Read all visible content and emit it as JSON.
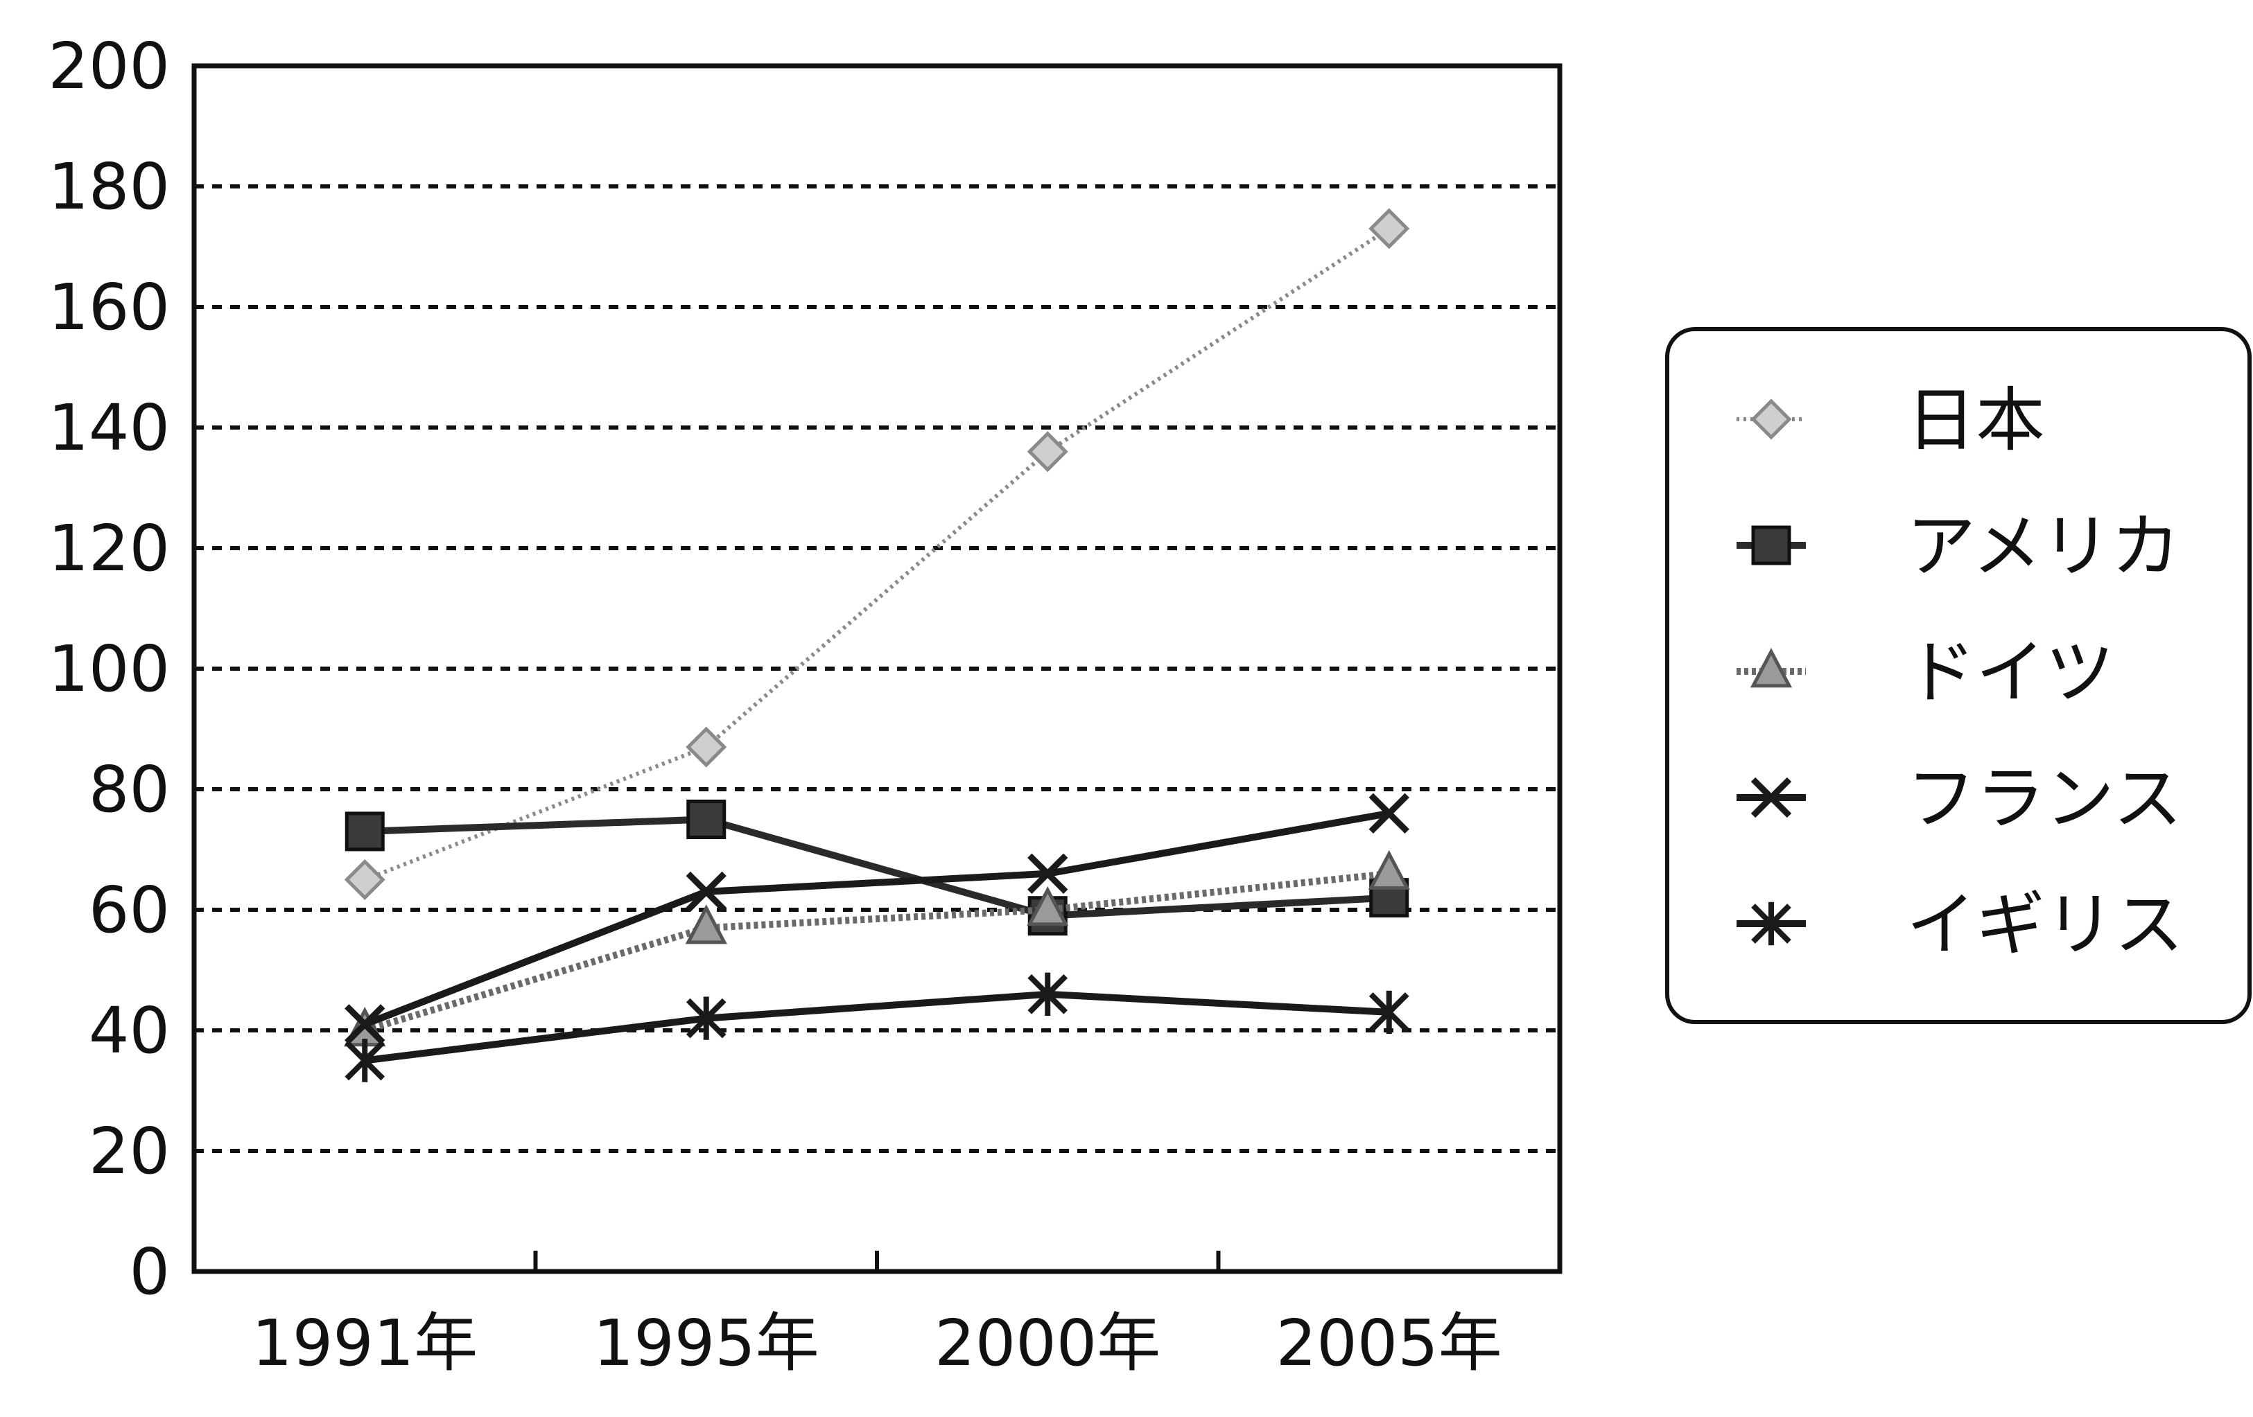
{
  "chart_data": {
    "type": "line",
    "title": "",
    "xlabel": "",
    "ylabel": "",
    "categories": [
      "1991年",
      "1995年",
      "2000年",
      "2005年"
    ],
    "ylim": [
      0,
      200
    ],
    "yticks": [
      0,
      20,
      40,
      60,
      80,
      100,
      120,
      140,
      160,
      180,
      200
    ],
    "grid": "horizontal dashed",
    "legend_position": "right",
    "series": [
      {
        "name": "日本",
        "values": [
          65,
          87,
          136,
          173
        ],
        "color": "#9a9a9a",
        "marker": "diamond-hatched",
        "line": "dotted-light"
      },
      {
        "name": "アメリカ",
        "values": [
          73,
          75,
          59,
          62
        ],
        "color": "#2a2a2a",
        "marker": "square",
        "line": "solid"
      },
      {
        "name": "ドイツ",
        "values": [
          40,
          57,
          60,
          66
        ],
        "color": "#6e6e6e",
        "marker": "triangle-hatched",
        "line": "dotted-heavy"
      },
      {
        "name": "フランス",
        "values": [
          41,
          63,
          66,
          76
        ],
        "color": "#1a1a1a",
        "marker": "x",
        "line": "solid"
      },
      {
        "name": "イギリス",
        "values": [
          35,
          42,
          46,
          43
        ],
        "color": "#1a1a1a",
        "marker": "star",
        "line": "solid"
      }
    ]
  }
}
